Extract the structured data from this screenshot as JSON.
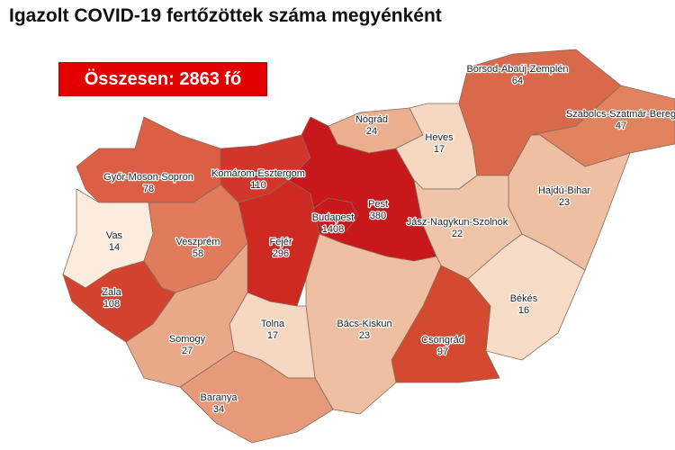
{
  "title": "Igazolt COVID-19 fertőzöttek száma megyénként",
  "total_label": "Összesen: 2863 fő",
  "colors": {
    "total_box": "#e30000"
  },
  "counties": [
    {
      "name": "Győr-Moson-Sopron",
      "value": "78",
      "color": "#db5e45"
    },
    {
      "name": "Komárom-Esztergom",
      "value": "110",
      "color": "#d2352a"
    },
    {
      "name": "Vas",
      "value": "14",
      "color": "#fcecdd"
    },
    {
      "name": "Veszprém",
      "value": "58",
      "color": "#e07c5c"
    },
    {
      "name": "Fejér",
      "value": "296",
      "color": "#cf2a21"
    },
    {
      "name": "Pest",
      "value": "380",
      "color": "#c8181b"
    },
    {
      "name": "Budapest",
      "value": "1408",
      "color": "#c8181b"
    },
    {
      "name": "Nógrád",
      "value": "24",
      "color": "#ebae8f"
    },
    {
      "name": "Heves",
      "value": "17",
      "color": "#f6d8c2"
    },
    {
      "name": "Borsod-Abaúj-Zemplén",
      "value": "64",
      "color": "#d9694b"
    },
    {
      "name": "Szabolcs-Szatmár-Bereg",
      "value": "47",
      "color": "#e1835f"
    },
    {
      "name": "Hajdú-Bihar",
      "value": "23",
      "color": "#efbfa1"
    },
    {
      "name": "Jász-Nagykun-Szolnok",
      "value": "22",
      "color": "#f0c4a8"
    },
    {
      "name": "Békés",
      "value": "16",
      "color": "#f7dcc7"
    },
    {
      "name": "Csongrád",
      "value": "97",
      "color": "#d44a30"
    },
    {
      "name": "Bács-Kiskun",
      "value": "23",
      "color": "#efbfa1"
    },
    {
      "name": "Tolna",
      "value": "17",
      "color": "#f6d8c2"
    },
    {
      "name": "Zala",
      "value": "108",
      "color": "#d4432f"
    },
    {
      "name": "Somogy",
      "value": "27",
      "color": "#e9a888"
    },
    {
      "name": "Baranya",
      "value": "34",
      "color": "#e69a79"
    }
  ]
}
